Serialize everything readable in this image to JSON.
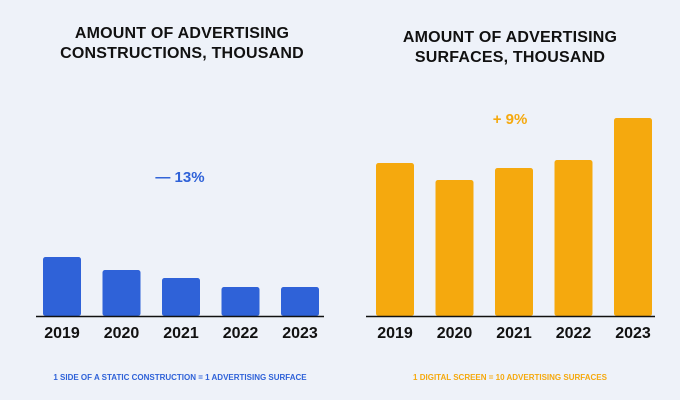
{
  "chart_data": [
    {
      "type": "bar",
      "title_lines": [
        "AMOUNT OF ADVERTISING",
        "CONSTRUCTIONS, THOUSAND"
      ],
      "categories": [
        "2019",
        "2020",
        "2021",
        "2022",
        "2023"
      ],
      "values": [
        59,
        46,
        38,
        29,
        29
      ],
      "ylim": [
        0,
        205
      ],
      "color": "#2f62d8",
      "change_label": "— 13%",
      "footnote": "1 SIDE OF A STATIC CONSTRUCTION = 1 ADVERTISING SURFACE"
    },
    {
      "type": "bar",
      "title_lines": [
        "AMOUNT OF ADVERTISING",
        "SURFACES, THOUSAND"
      ],
      "categories": [
        "2019",
        "2020",
        "2021",
        "2022",
        "2023"
      ],
      "values": [
        153,
        136,
        148,
        156,
        198
      ],
      "ylim": [
        0,
        205
      ],
      "color": "#f5a90e",
      "change_label": "+ 9%",
      "footnote": "1 DIGITAL SCREEN = 10 ADVERTISING SURFACES"
    }
  ]
}
